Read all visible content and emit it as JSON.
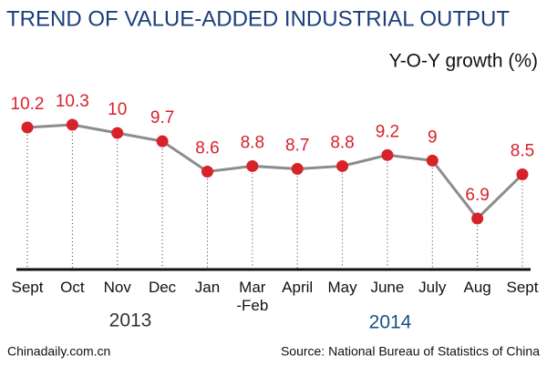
{
  "chart_data": {
    "type": "line",
    "title": "TREND OF VALUE-ADDED INDUSTRIAL OUTPUT",
    "subtitle": "Y-O-Y growth (%)",
    "categories": [
      "Sept",
      "Oct",
      "Nov",
      "Dec",
      "Jan",
      "Mar\n-Feb",
      "April",
      "May",
      "June",
      "July",
      "Aug",
      "Sept"
    ],
    "series": [
      {
        "values": [
          10.2,
          10.3,
          10,
          9.7,
          8.6,
          8.8,
          8.7,
          8.8,
          9.2,
          9,
          6.9,
          8.5
        ],
        "color": "#8c8c8c",
        "marker_color": "#d7222a"
      }
    ],
    "annotations": [
      "2013",
      "2014"
    ],
    "source": "Source: National Bureau of Statistics of China",
    "credit": "Chinadaily.com.cn"
  }
}
